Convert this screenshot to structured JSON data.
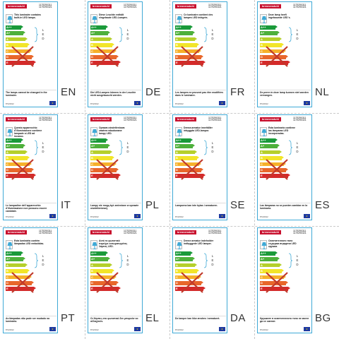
{
  "brand": "brennenstuhl",
  "codes": [
    "1179290311",
    "1179290321"
  ],
  "regulation": "874/2012",
  "led_letters": [
    "L",
    "E",
    "D"
  ],
  "classes": [
    "A++",
    "A+",
    "A",
    "B",
    "C",
    "D",
    "E"
  ],
  "class_colors": [
    "#1a9a3a",
    "#4db03b",
    "#b5cf2b",
    "#f2e52a",
    "#f6b12a",
    "#e8672b",
    "#d42a2a"
  ],
  "cross_color": "#c0392b",
  "icons": {
    "lamp": "lamp-icon",
    "eu": "eu-flag-icon",
    "brace": "brace-icon"
  },
  "cells": [
    {
      "lang": "EN",
      "top": "This luminaire contains built-in LED lamps.",
      "bottom": "The lamps cannot be changed in the luminaire."
    },
    {
      "lang": "DE",
      "top": "Diese Leuchte enthält eingebaute LED-Lampen.",
      "bottom": "Die LED-Lampen können in der Leuchte nicht ausgetauscht werden."
    },
    {
      "lang": "FR",
      "top": "Ce luminaire contient des lampes LED intégrés.",
      "bottom": "Les lampes ne peuvent pas être modifiées dans le luminaire."
    },
    {
      "lang": "NL",
      "top": "Deze lamp heeft ingebouwde LED´s.",
      "bottom": "De peren in deze lamp kunnen niet worden vervangen."
    },
    {
      "lang": "IT",
      "top": "Questo apparecchio d'illuminazione contiene lampade a LED ad incasso.",
      "bottom": "Le lampadine dell´apparecchio d'illuminazione non possono essere cambiate."
    },
    {
      "lang": "PL",
      "top": "Oprawa oświetleniowa zawiera wbudowane lampy LED.",
      "bottom": "Lampy nie mogą być zmieniane w oprawie oświetleniowej."
    },
    {
      "lang": "SE",
      "top": "Denna armatur innehåller inbyggda LED-lampor.",
      "bottom": "Lamporna kan inte bytas i armaturen."
    },
    {
      "lang": "ES",
      "top": "Esta luminaria contiene las lámparas LED incorporadas.",
      "bottom": "Las lámparas no se pueden cambiar en la luminaria."
    },
    {
      "lang": "PT",
      "top": "Esta luminária contém lâmpadas LED embutidas.",
      "bottom": "As lâmpadas não pode ser mudado na luminária."
    },
    {
      "lang": "EL",
      "top": "Αυτό το φωτιστικό περιέχει ενσωματωμένες λάμπες LED.",
      "bottom": "Οι λάμπες στο φωτιστικό δεν μπορούν να αλλαχτούν."
    },
    {
      "lang": "DA",
      "top": "Denne armatur indeholder indbyggede LED lamper.",
      "bottom": "De lamper kan ikke ændres i armaturet."
    },
    {
      "lang": "BG",
      "top": "Осветителното тяло съдържа вградени LED крушки.",
      "bottom": "Крушките в осветителното тяло не могат да се сменят."
    }
  ]
}
